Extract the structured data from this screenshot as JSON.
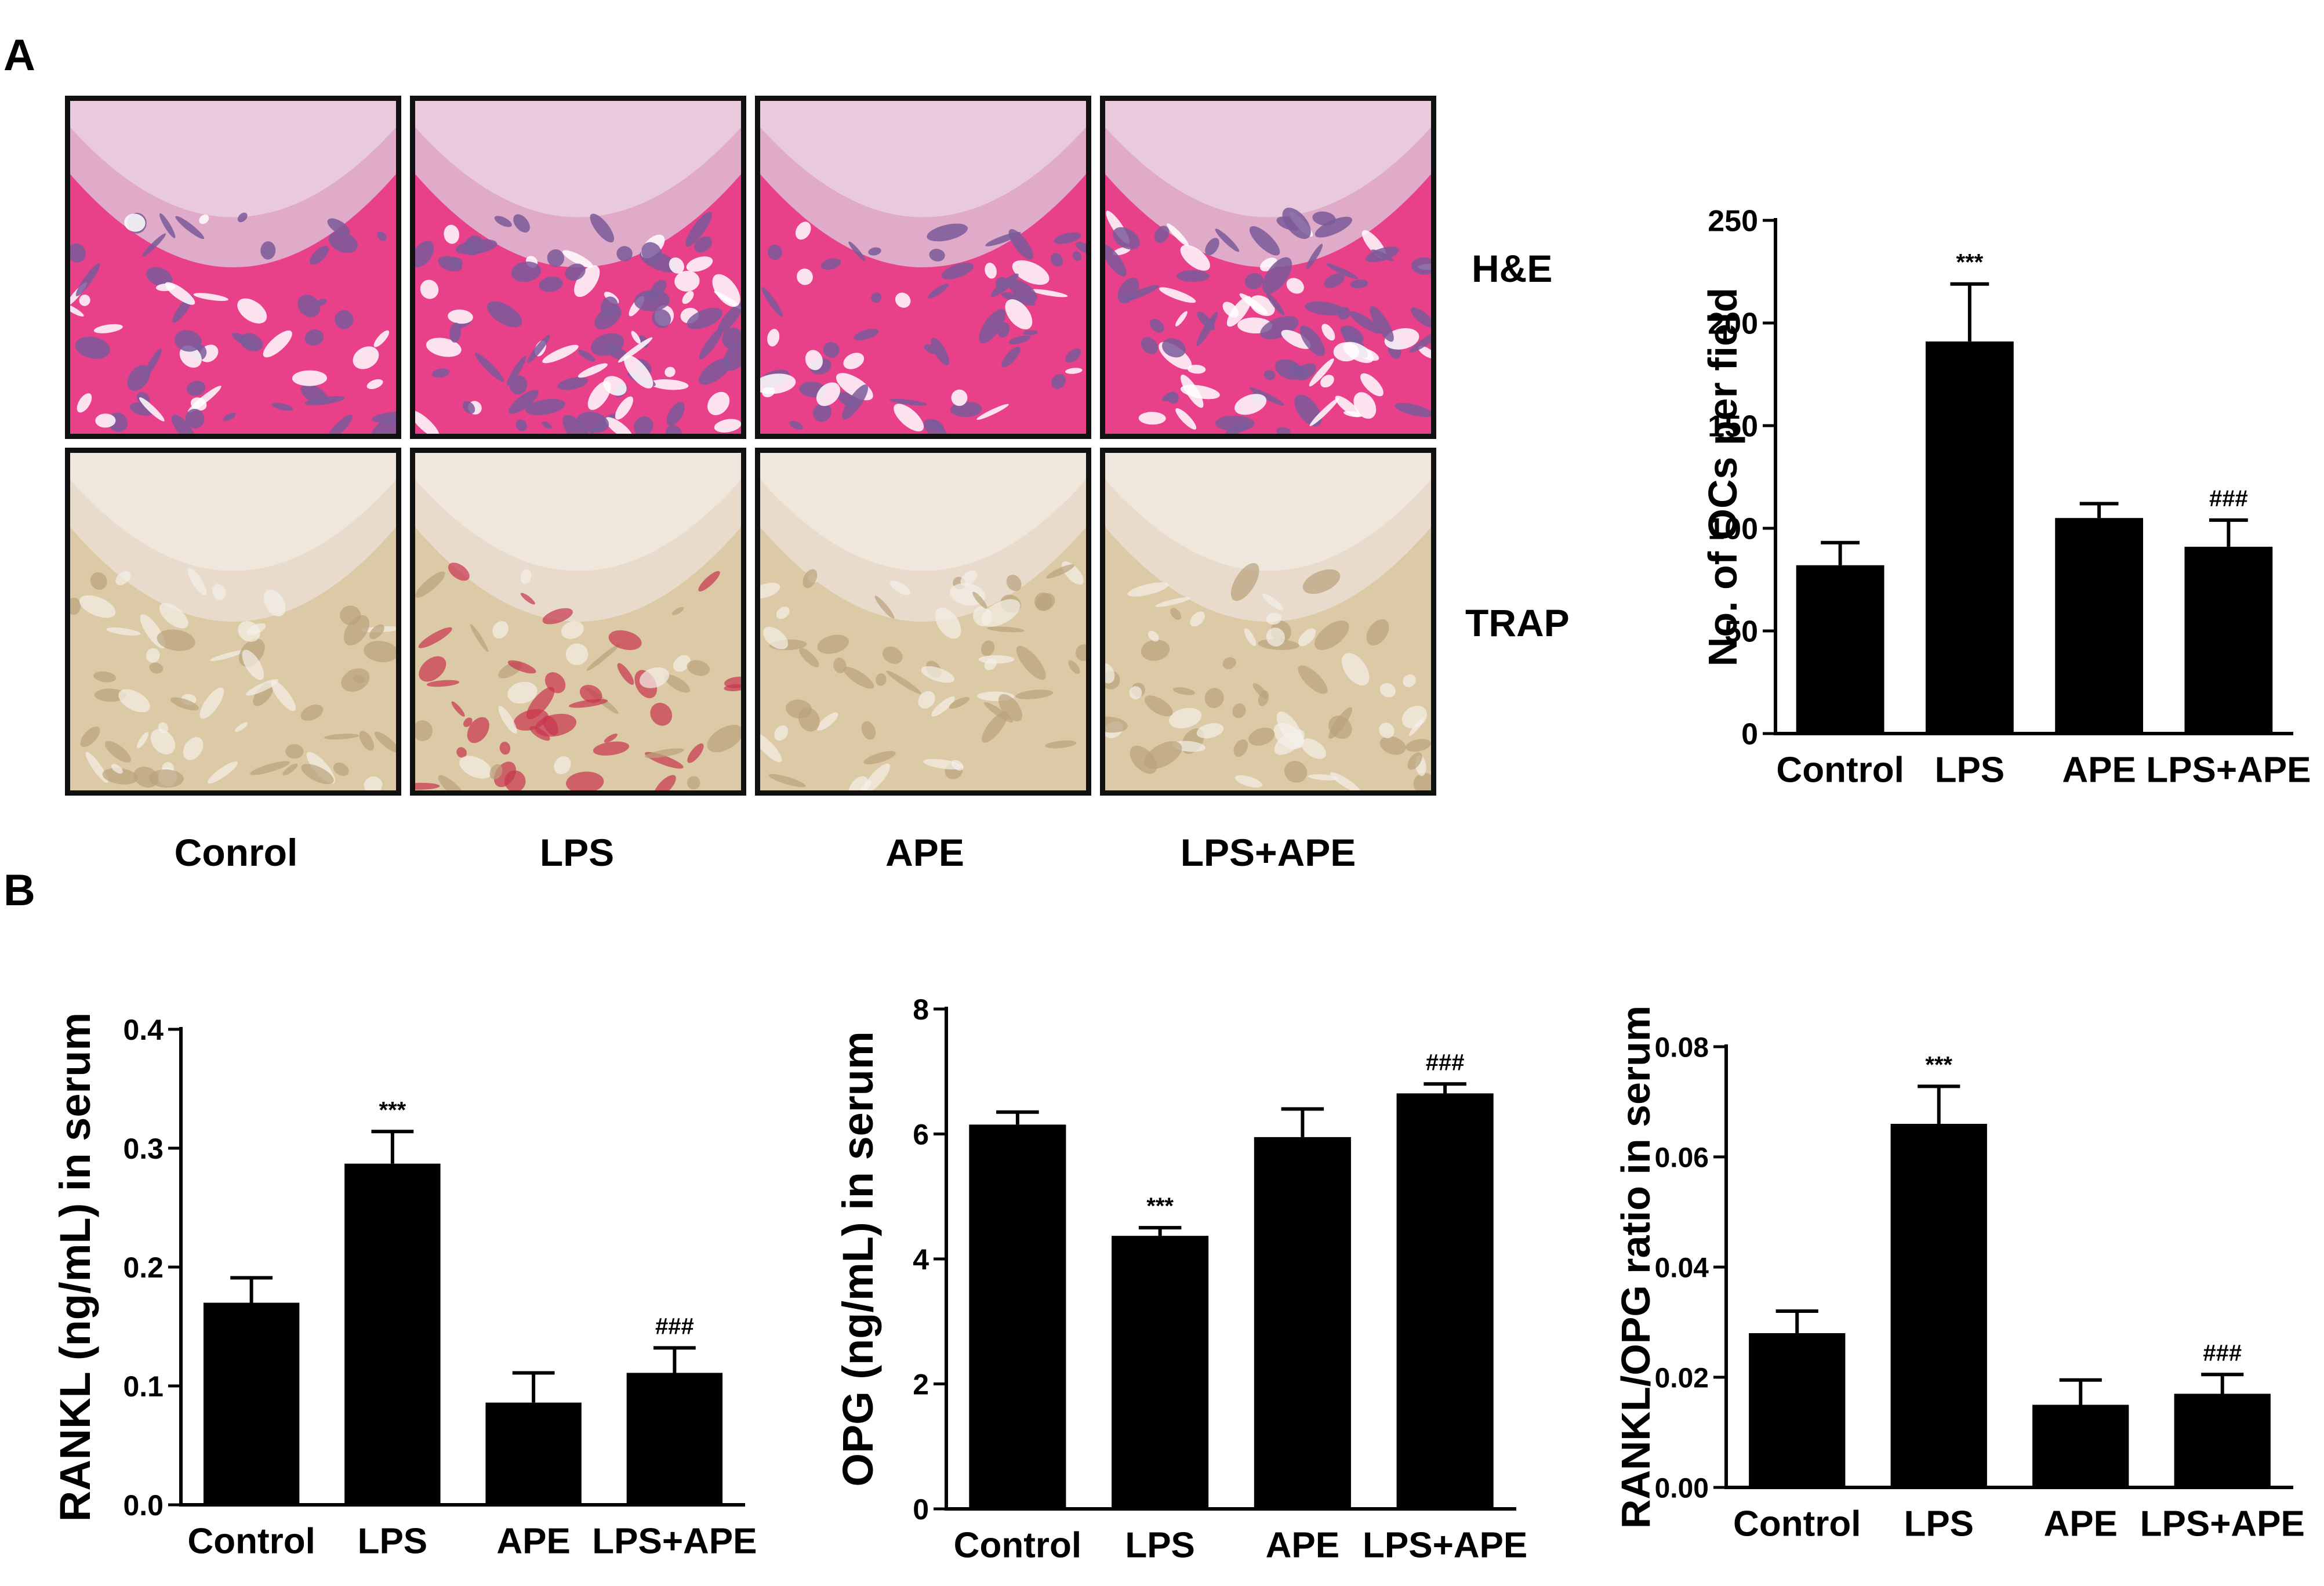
{
  "panel_labels": {
    "a": "A",
    "b": "B"
  },
  "histology": {
    "row_labels": [
      "H&E",
      "TRAP"
    ],
    "column_labels": [
      "Conrol",
      "LPS",
      "APE",
      "LPS+APE"
    ]
  },
  "colors": {
    "bar": "#000000",
    "he_pink": "#e8418a",
    "he_purple": "#7a5a9a",
    "trap_bg": "#dccaa6",
    "trap_red": "#c8344f"
  },
  "chart_data": [
    {
      "id": "ocs",
      "type": "bar",
      "categories": [
        "Control",
        "LPS",
        "APE",
        "LPS+APE"
      ],
      "values": [
        82,
        191,
        105,
        91
      ],
      "errors": [
        11,
        28,
        7,
        13
      ],
      "annotations": [
        "",
        "***",
        "",
        "###"
      ],
      "ylabel": "No. of OCs per field",
      "ylim": [
        0,
        250
      ],
      "yticks": [
        0,
        50,
        100,
        150,
        200,
        250
      ],
      "ytick_labels": [
        "0",
        "50",
        "100",
        "150",
        "200",
        "250"
      ]
    },
    {
      "id": "rankl",
      "type": "bar",
      "categories": [
        "Control",
        "LPS",
        "APE",
        "LPS+APE"
      ],
      "values": [
        0.17,
        0.287,
        0.086,
        0.111
      ],
      "errors": [
        0.021,
        0.027,
        0.025,
        0.021
      ],
      "annotations": [
        "",
        "***",
        "",
        "###"
      ],
      "ylabel": "RANKL (ng/mL) in serum",
      "ylim": [
        0,
        0.4
      ],
      "yticks": [
        0,
        0.1,
        0.2,
        0.3,
        0.4
      ],
      "ytick_labels": [
        "0.0",
        "0.1",
        "0.2",
        "0.3",
        "0.4"
      ]
    },
    {
      "id": "opg",
      "type": "bar",
      "categories": [
        "Control",
        "LPS",
        "APE",
        "LPS+APE"
      ],
      "values": [
        6.15,
        4.37,
        5.95,
        6.65
      ],
      "errors": [
        0.2,
        0.13,
        0.45,
        0.15
      ],
      "annotations": [
        "",
        "***",
        "",
        "###"
      ],
      "ylabel": "OPG (ng/mL) in serum",
      "ylim": [
        0,
        8
      ],
      "yticks": [
        0,
        2,
        4,
        6,
        8
      ],
      "ytick_labels": [
        "0",
        "2",
        "4",
        "6",
        "8"
      ]
    },
    {
      "id": "ratio",
      "type": "bar",
      "categories": [
        "Control",
        "LPS",
        "APE",
        "LPS+APE"
      ],
      "values": [
        0.028,
        0.066,
        0.015,
        0.017
      ],
      "errors": [
        0.004,
        0.0068,
        0.0045,
        0.0035
      ],
      "annotations": [
        "",
        "***",
        "",
        "###"
      ],
      "ylabel": "RANKL/OPG ratio in serum",
      "ylim": [
        0,
        0.08
      ],
      "yticks": [
        0,
        0.02,
        0.04,
        0.06,
        0.08
      ],
      "ytick_labels": [
        "0.00",
        "0.02",
        "0.04",
        "0.06",
        "0.08"
      ]
    }
  ]
}
